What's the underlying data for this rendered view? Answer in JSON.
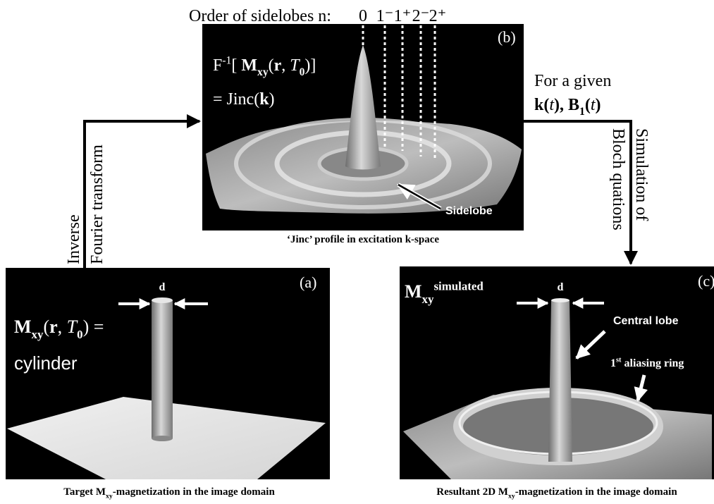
{
  "sidelobe_order": {
    "label": "Order of sidelobes n:",
    "orders": [
      "0",
      "1⁻",
      "1⁺",
      "2⁻",
      "2⁺"
    ]
  },
  "panel_b": {
    "tag": "(b)",
    "formula_line1": [
      "F",
      "-1",
      "[ ",
      "M",
      "xy",
      "(",
      "r",
      ", ",
      "T",
      "0",
      ")]"
    ],
    "formula_line2": [
      "= Jinc(",
      "k",
      ")"
    ],
    "callout": "Sidelobe",
    "caption": "‘Jinc’ profile in excitation k-space"
  },
  "panel_a": {
    "tag": "(a)",
    "dimension": "d",
    "formula_line1": [
      "M",
      "xy",
      "(",
      "r",
      ", ",
      "T",
      "0",
      ") ="
    ],
    "formula_line2": "cylinder",
    "caption": [
      "Target M",
      "xy",
      "-magnetization in the image domain"
    ]
  },
  "panel_c": {
    "tag": "(c)",
    "formula": [
      "M",
      "xy",
      "simulated"
    ],
    "dimension": "d",
    "central_callout": "Central lobe",
    "ring_callout": [
      "1",
      "st",
      " aliasing ring"
    ],
    "caption": [
      "Resultant 2D M",
      "xy",
      "-magnetization in the image domain"
    ]
  },
  "left_arrow": {
    "labels": [
      "Inverse",
      "Fourier transform"
    ]
  },
  "right_arrow": {
    "line1": "For a given",
    "line2": [
      "k(",
      "t",
      "), ",
      "B",
      "1",
      "(",
      "t",
      ")"
    ],
    "side_labels": [
      "Simulation of",
      "Bloch quations"
    ]
  }
}
